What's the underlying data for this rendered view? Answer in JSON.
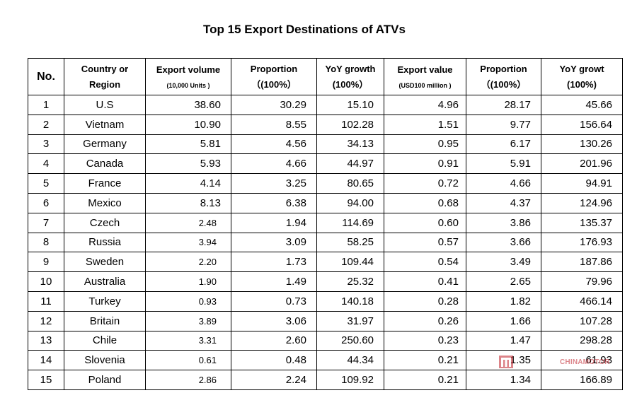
{
  "title": "Top 15 Export Destinations of ATVs",
  "header": {
    "no": "No.",
    "country": [
      "Country or",
      "Region"
    ],
    "export_volume": [
      "Export volume",
      "(10,000 Units )"
    ],
    "proportion1": [
      "Proportion",
      "（(100%）"
    ],
    "yoy1": [
      "YoY growth",
      "(100%）"
    ],
    "export_value": [
      "Export value",
      "(USD100 million )"
    ],
    "proportion2": [
      "Proportion",
      "（(100%）"
    ],
    "yoy2": [
      "YoY growt",
      "(100%)"
    ]
  },
  "rows": [
    {
      "no": "1",
      "country": "U.S",
      "volume": "38.60",
      "prop1": "30.29",
      "yoy1": "15.10",
      "value": "4.96",
      "prop2": "28.17",
      "yoy2": "45.66",
      "small": false
    },
    {
      "no": "2",
      "country": "Vietnam",
      "volume": "10.90",
      "prop1": "8.55",
      "yoy1": "102.28",
      "value": "1.51",
      "prop2": "9.77",
      "yoy2": "156.64",
      "small": false
    },
    {
      "no": "3",
      "country": "Germany",
      "volume": "5.81",
      "prop1": "4.56",
      "yoy1": "34.13",
      "value": "0.95",
      "prop2": "6.17",
      "yoy2": "130.26",
      "small": false
    },
    {
      "no": "4",
      "country": "Canada",
      "volume": "5.93",
      "prop1": "4.66",
      "yoy1": "44.97",
      "value": "0.91",
      "prop2": "5.91",
      "yoy2": "201.96",
      "small": false
    },
    {
      "no": "5",
      "country": "France",
      "volume": "4.14",
      "prop1": "3.25",
      "yoy1": "80.65",
      "value": "0.72",
      "prop2": "4.66",
      "yoy2": "94.91",
      "small": false
    },
    {
      "no": "6",
      "country": "Mexico",
      "volume": "8.13",
      "prop1": "6.38",
      "yoy1": "94.00",
      "value": "0.68",
      "prop2": "4.37",
      "yoy2": "124.96",
      "small": false
    },
    {
      "no": "7",
      "country": "Czech",
      "volume": "2.48",
      "prop1": "1.94",
      "yoy1": "114.69",
      "value": "0.60",
      "prop2": "3.86",
      "yoy2": "135.37",
      "small": true
    },
    {
      "no": "8",
      "country": "Russia",
      "volume": "3.94",
      "prop1": "3.09",
      "yoy1": "58.25",
      "value": "0.57",
      "prop2": "3.66",
      "yoy2": "176.93",
      "small": true
    },
    {
      "no": "9",
      "country": "Sweden",
      "volume": "2.20",
      "prop1": "1.73",
      "yoy1": "109.44",
      "value": "0.54",
      "prop2": "3.49",
      "yoy2": "187.86",
      "small": true
    },
    {
      "no": "10",
      "country": "Australia",
      "volume": "1.90",
      "prop1": "1.49",
      "yoy1": "25.32",
      "value": "0.41",
      "prop2": "2.65",
      "yoy2": "79.96",
      "small": true
    },
    {
      "no": "11",
      "country": "Turkey",
      "volume": "0.93",
      "prop1": "0.73",
      "yoy1": "140.18",
      "value": "0.28",
      "prop2": "1.82",
      "yoy2": "466.14",
      "small": true
    },
    {
      "no": "12",
      "country": "Britain",
      "volume": "3.89",
      "prop1": "3.06",
      "yoy1": "31.97",
      "value": "0.26",
      "prop2": "1.66",
      "yoy2": "107.28",
      "small": true
    },
    {
      "no": "13",
      "country": "Chile",
      "volume": "3.31",
      "prop1": "2.60",
      "yoy1": "250.60",
      "value": "0.23",
      "prop2": "1.47",
      "yoy2": "298.28",
      "small": true
    },
    {
      "no": "14",
      "country": "Slovenia",
      "volume": "0.61",
      "prop1": "0.48",
      "yoy1": "44.34",
      "value": "0.21",
      "prop2": "1.35",
      "yoy2": "61.93",
      "small": true
    },
    {
      "no": "15",
      "country": "Poland",
      "volume": "2.86",
      "prop1": "2.24",
      "yoy1": "109.92",
      "value": "0.21",
      "prop2": "1.34",
      "yoy2": "166.89",
      "small": true
    }
  ],
  "watermark": {
    "text": "CHINAMOTOR",
    "color": "#c0202a",
    "icon": "chinamotor-logo-icon"
  }
}
